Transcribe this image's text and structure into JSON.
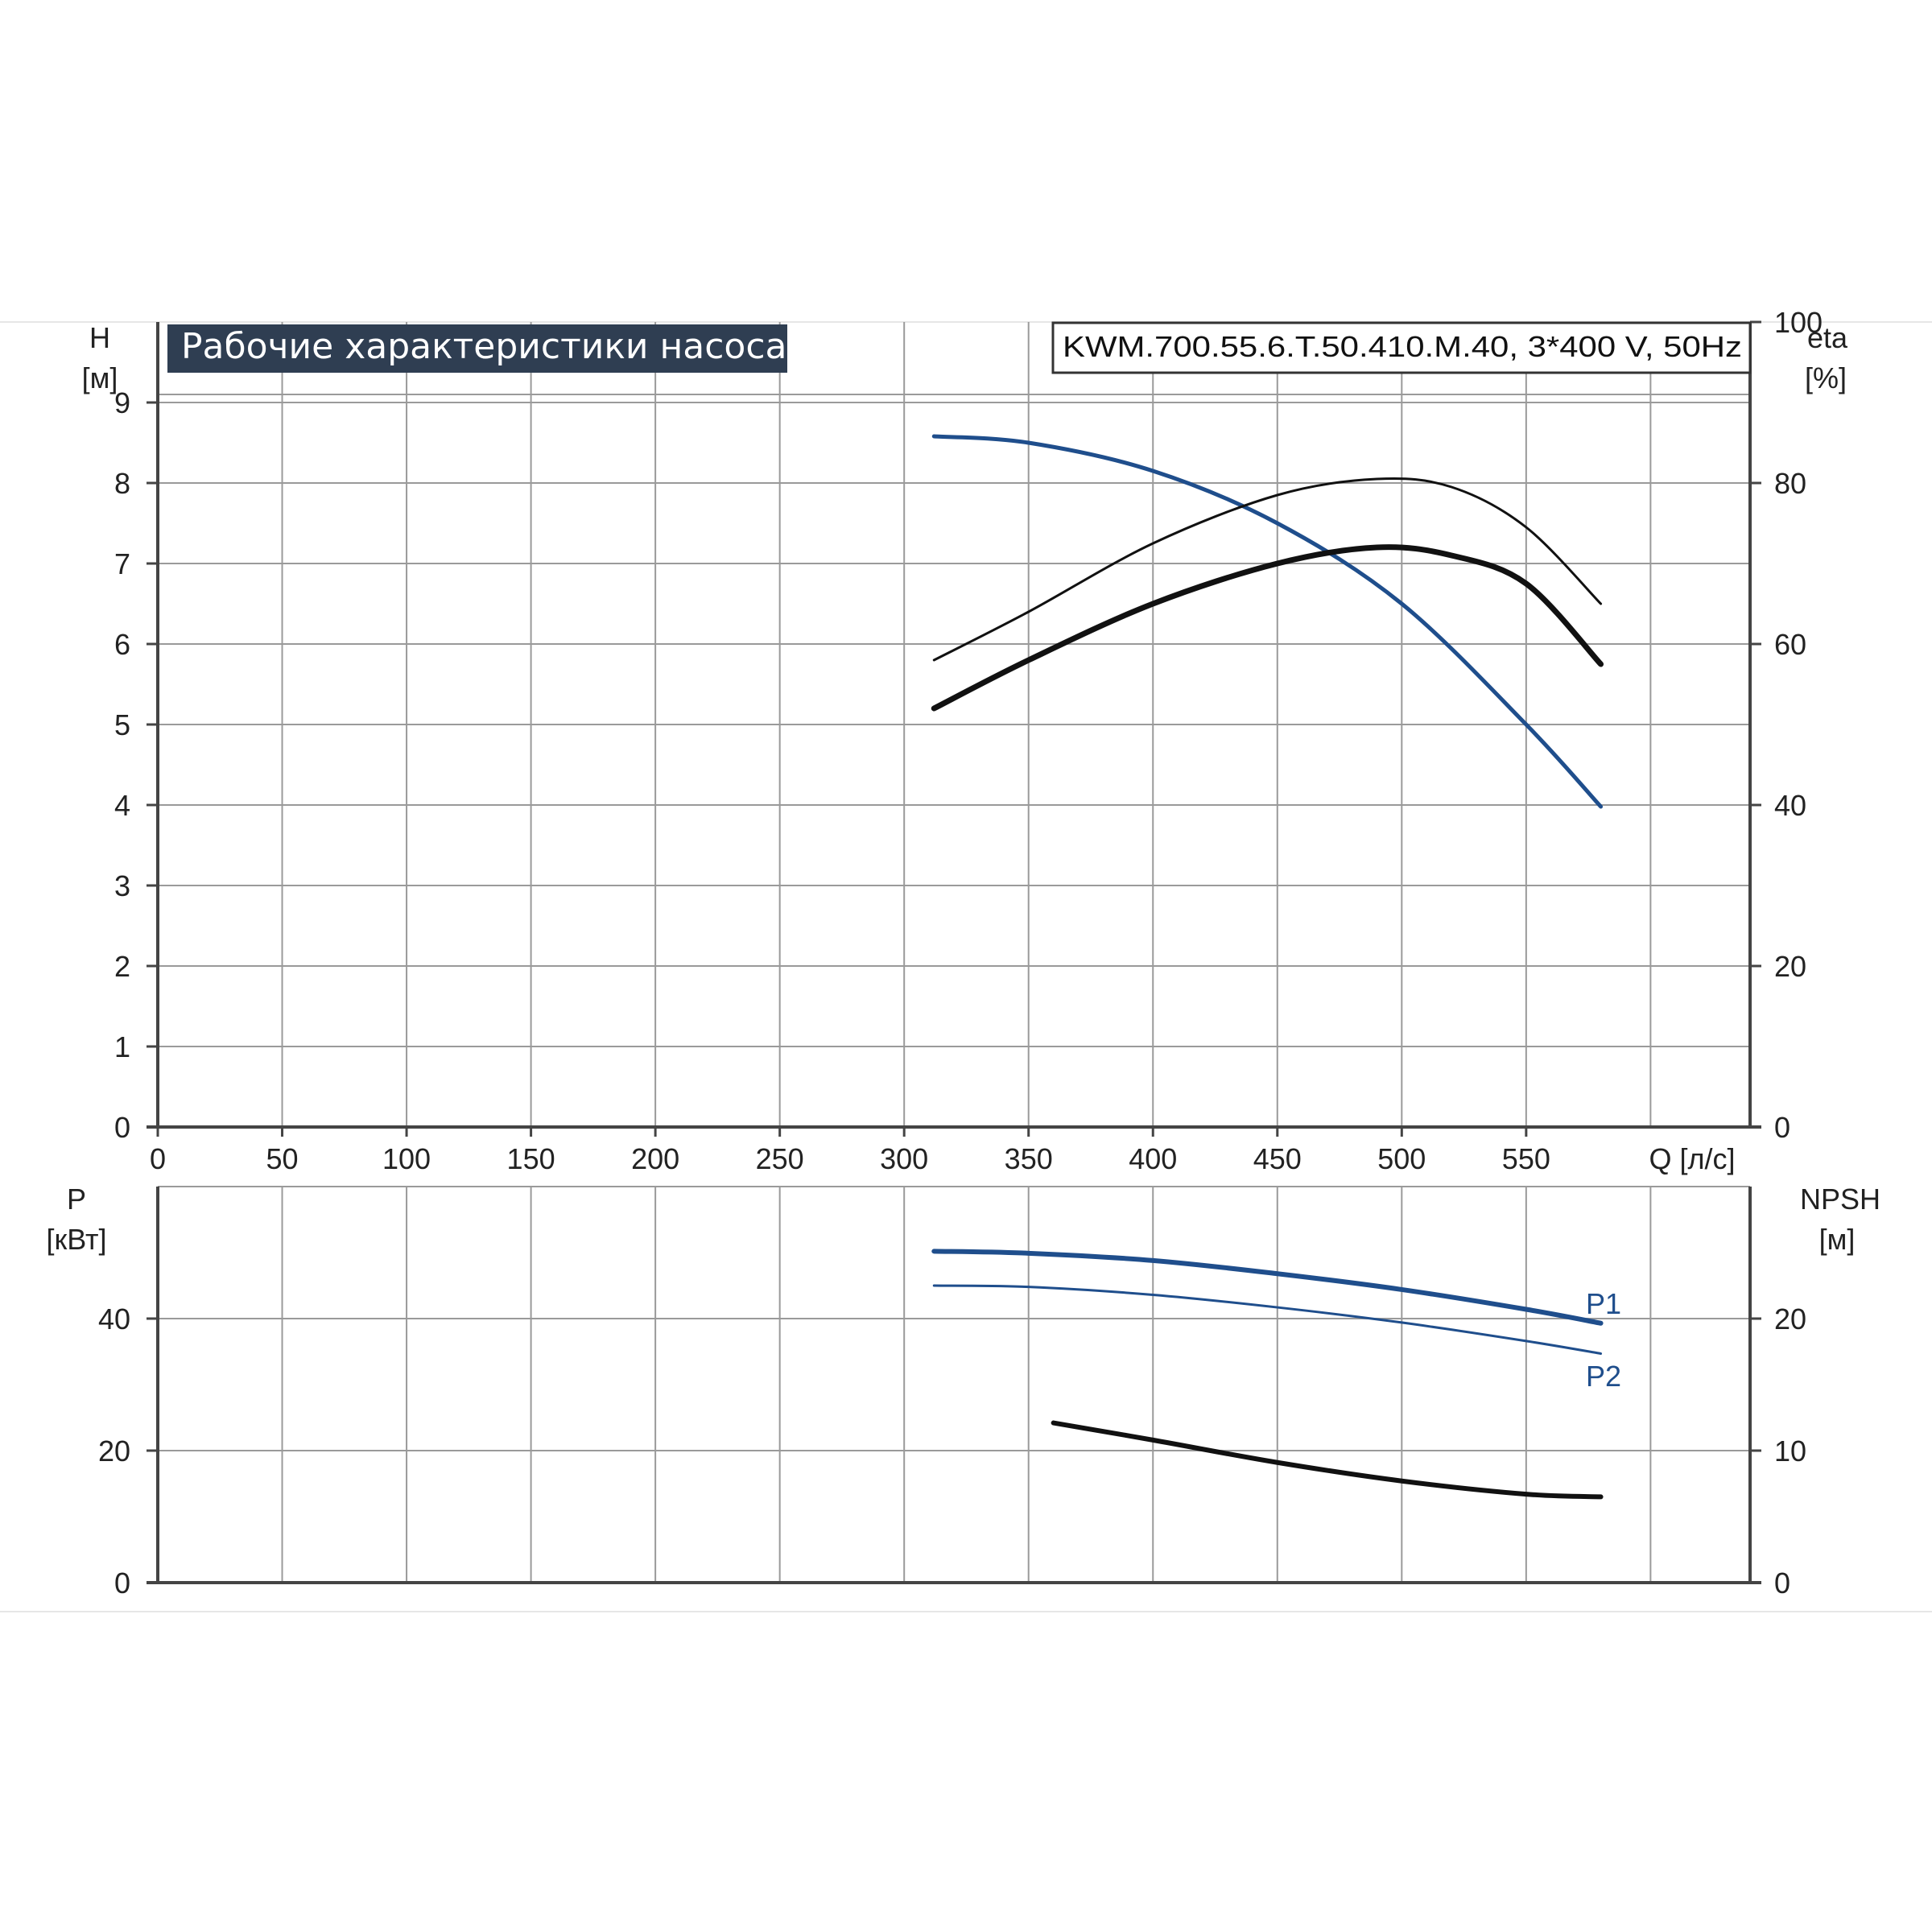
{
  "title": "Рабочие характеристики насоса",
  "model": "KWM.700.55.6.T.50.410.M.40, 3*400 V, 50Hz",
  "colors": {
    "blue": "#1f4e8c",
    "black": "#111111",
    "title_bg": "#2f3e52",
    "grid": "#9a9a9a"
  },
  "chart_data": [
    {
      "type": "line",
      "panel": "top",
      "xlabel": "Q [л/с]",
      "xlim": [
        0,
        640
      ],
      "x_ticks": [
        0,
        50,
        100,
        150,
        200,
        250,
        300,
        350,
        400,
        450,
        500,
        550
      ],
      "left_axis": {
        "label_line1": "H",
        "label_line2": "[м]",
        "lim": [
          0,
          10
        ],
        "ticks": [
          0,
          1,
          2,
          3,
          4,
          5,
          6,
          7,
          8,
          9
        ]
      },
      "right_axis": {
        "label_line1": "eta",
        "label_line2": "[%]",
        "lim": [
          0,
          100
        ],
        "ticks": [
          0,
          20,
          40,
          60,
          80,
          100
        ]
      },
      "grid": true,
      "series": [
        {
          "axis": "left",
          "color": "blue",
          "width": 5,
          "x": [
            312,
            350,
            400,
            450,
            500,
            550,
            580
          ],
          "y": [
            8.58,
            8.5,
            8.15,
            7.5,
            6.5,
            5.0,
            3.98
          ]
        },
        {
          "axis": "right",
          "color": "black",
          "width": 3,
          "x": [
            312,
            350,
            400,
            450,
            490,
            520,
            550,
            580
          ],
          "y": [
            58,
            64,
            72.5,
            78.5,
            80.5,
            79.5,
            74.5,
            65
          ]
        },
        {
          "axis": "right",
          "color": "black",
          "width": 7,
          "x": [
            312,
            350,
            400,
            450,
            490,
            520,
            550,
            580
          ],
          "y": [
            52,
            58,
            65,
            70,
            72,
            71,
            67.5,
            57.5
          ]
        }
      ]
    },
    {
      "type": "line",
      "panel": "bottom",
      "xlim": [
        0,
        640
      ],
      "left_axis": {
        "label_line1": "P",
        "label_line2": "[кВт]",
        "lim": [
          0,
          60
        ],
        "ticks": [
          0,
          20,
          40
        ]
      },
      "right_axis": {
        "label_line1": "NPSH",
        "label_line2": "[м]",
        "lim": [
          0,
          30
        ],
        "ticks": [
          0,
          10,
          20
        ]
      },
      "grid": true,
      "series": [
        {
          "name": "P1",
          "axis": "left",
          "color": "blue",
          "width": 6,
          "x": [
            312,
            350,
            400,
            450,
            500,
            550,
            580
          ],
          "y": [
            50.2,
            49.9,
            48.8,
            46.8,
            44.4,
            41.4,
            39.3
          ]
        },
        {
          "name": "P2",
          "axis": "left",
          "color": "blue",
          "width": 3,
          "x": [
            312,
            350,
            400,
            450,
            500,
            550,
            580
          ],
          "y": [
            45,
            44.8,
            43.6,
            41.7,
            39.4,
            36.6,
            34.7
          ]
        },
        {
          "axis": "right",
          "color": "black",
          "width": 6,
          "x": [
            360,
            400,
            450,
            500,
            550,
            580
          ],
          "y": [
            12.1,
            10.8,
            9.1,
            7.7,
            6.7,
            6.5
          ]
        }
      ]
    }
  ]
}
